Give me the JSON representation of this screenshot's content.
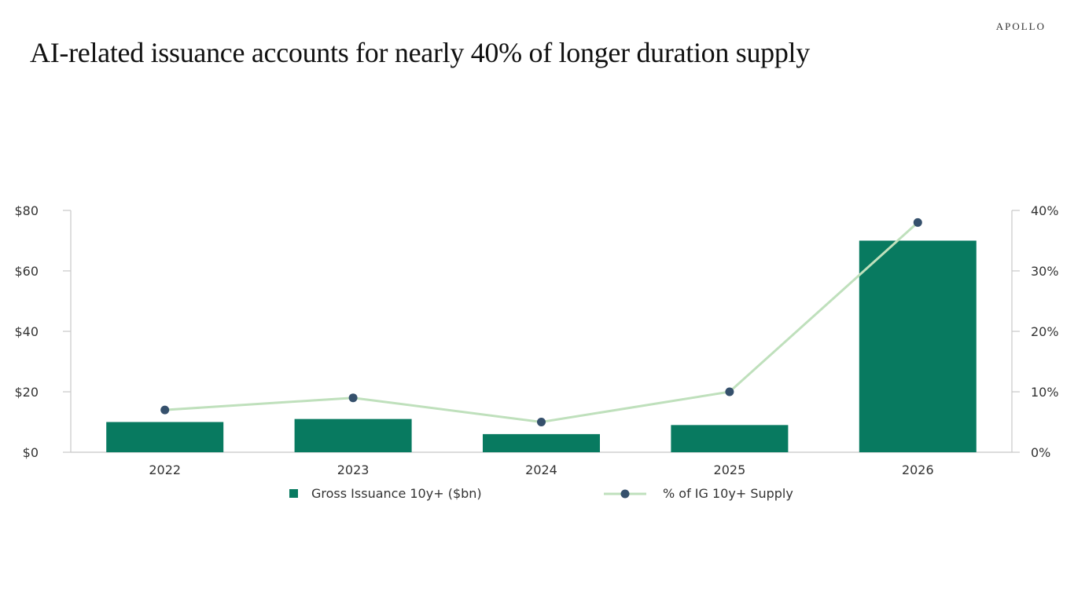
{
  "header": {
    "brand": "APOLLO",
    "title": "AI-related issuance accounts for nearly 40% of longer duration supply"
  },
  "chart_data": {
    "type": "bar",
    "title": "AI-related issuance accounts for nearly 40% of longer duration supply",
    "categories": [
      "2022",
      "2023",
      "2024",
      "2025",
      "2026"
    ],
    "series": [
      {
        "name": "Gross Issuance 10y+ ($bn)",
        "type": "bar",
        "axis": "left",
        "color": "#087a60",
        "values": [
          10,
          11,
          6,
          9,
          70
        ]
      },
      {
        "name": "% of IG 10y+ Supply",
        "type": "line",
        "axis": "right",
        "color": "#bfe0bc",
        "marker_color": "#35506c",
        "values": [
          7,
          9,
          5,
          10,
          38
        ]
      }
    ],
    "y_left": {
      "lim": [
        0,
        80
      ],
      "ticks": [
        0,
        20,
        40,
        60,
        80
      ],
      "tick_labels": [
        "$0",
        "$20",
        "$40",
        "$60",
        "$80"
      ]
    },
    "y_right": {
      "lim": [
        0,
        40
      ],
      "ticks": [
        0,
        10,
        20,
        30,
        40
      ],
      "tick_labels": [
        "0%",
        "10%",
        "20%",
        "30%",
        "40%"
      ]
    },
    "grid": false,
    "legend_position": "bottom"
  }
}
